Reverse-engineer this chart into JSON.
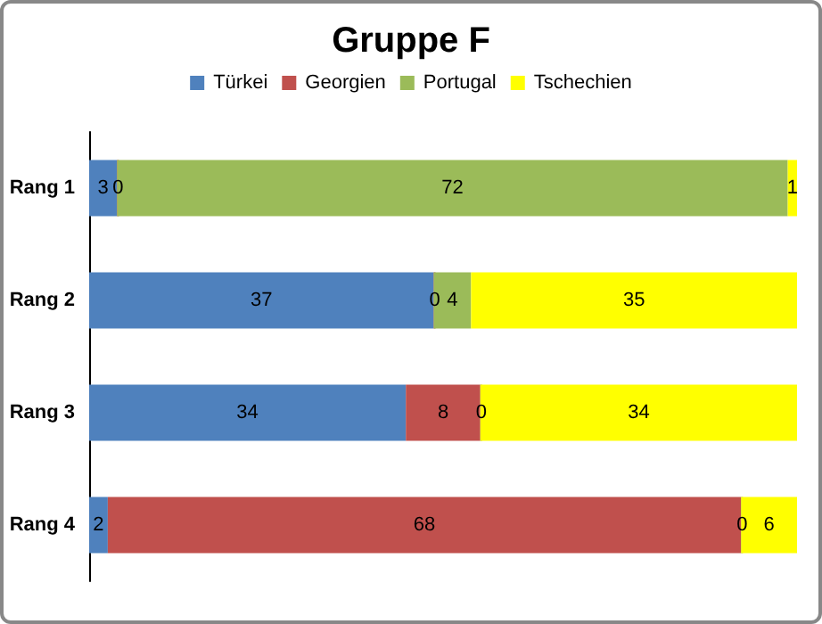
{
  "chart_data": {
    "type": "bar",
    "title": "Gruppe F",
    "orientation": "horizontal",
    "stacked": true,
    "categories": [
      "Rang 1",
      "Rang 2",
      "Rang 3",
      "Rang 4"
    ],
    "series": [
      {
        "name": "Türkei",
        "color": "#4f81bd",
        "values": [
          3,
          37,
          34,
          2
        ]
      },
      {
        "name": "Georgien",
        "color": "#c0504d",
        "values": [
          0,
          0,
          8,
          68
        ]
      },
      {
        "name": "Portugal",
        "color": "#9bbb59",
        "values": [
          72,
          4,
          0,
          0
        ]
      },
      {
        "name": "Tschechien",
        "color": "#ffff00",
        "values": [
          1,
          35,
          34,
          6
        ]
      }
    ],
    "xlim": [
      0,
      76
    ],
    "tick_labels": "y",
    "data_labels": true,
    "legend": "top"
  }
}
